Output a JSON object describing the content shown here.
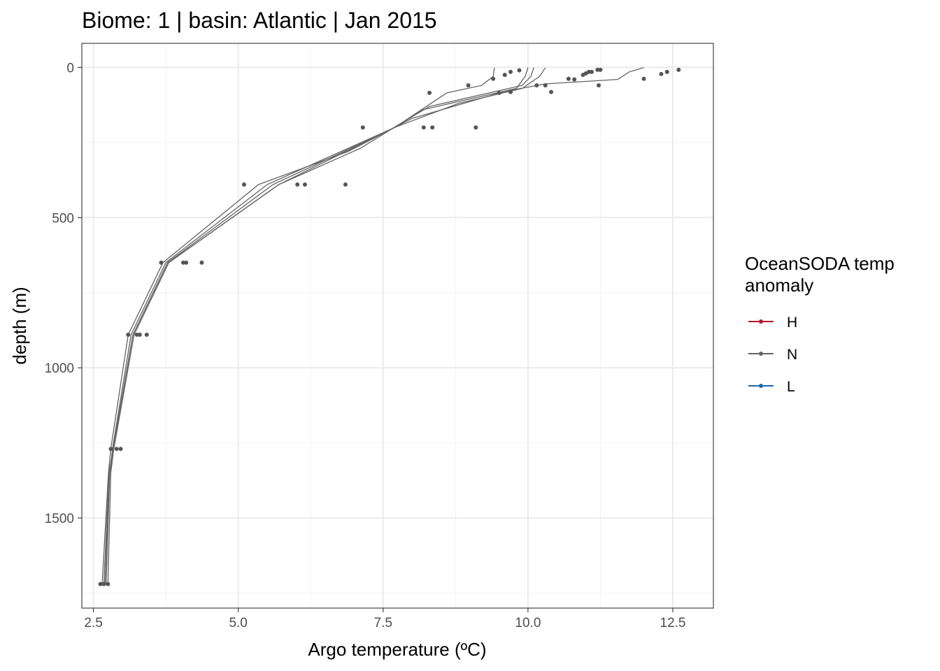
{
  "chart_data": {
    "type": "line",
    "title": "Biome: 1 | basin: Atlantic  | Jan 2015",
    "xlabel": "Argo temperature (ºC)",
    "ylabel": "depth (m)",
    "xlim": [
      2.3,
      13.2
    ],
    "ylim": [
      1800,
      -80
    ],
    "y_reversed": true,
    "x_ticks": [
      2.5,
      5.0,
      7.5,
      10.0,
      12.5
    ],
    "x_tick_labels": [
      "2.5",
      "5.0",
      "7.5",
      "10.0",
      "12.5"
    ],
    "y_ticks": [
      0,
      500,
      1000,
      1500
    ],
    "y_tick_labels": [
      "0",
      "500",
      "1000",
      "1500"
    ],
    "grid": true,
    "legend": {
      "position": "right",
      "title": "OceanSODA temp anomaly",
      "title_lines": [
        "OceanSODA temp",
        "anomaly"
      ],
      "entries": [
        {
          "label": "H",
          "color": "#b2182b"
        },
        {
          "label": "N",
          "color": "#636363"
        },
        {
          "label": "L",
          "color": "#2166ac"
        }
      ]
    },
    "series": [
      {
        "group": "N",
        "color": "#636363",
        "points": [
          [
            9.42,
            1
          ],
          [
            9.4,
            30
          ],
          [
            9.2,
            60
          ],
          [
            8.6,
            85
          ],
          [
            7.7,
            200
          ],
          [
            5.7,
            390
          ],
          [
            3.8,
            650
          ],
          [
            3.2,
            890
          ],
          [
            2.85,
            1270
          ],
          [
            2.8,
            1350
          ],
          [
            2.75,
            1720
          ]
        ]
      },
      {
        "group": "N",
        "color": "#636363",
        "points": [
          [
            10.0,
            1
          ],
          [
            9.95,
            30
          ],
          [
            9.8,
            70
          ],
          [
            8.2,
            140
          ],
          [
            7.1,
            270
          ],
          [
            5.7,
            390
          ],
          [
            3.8,
            650
          ],
          [
            3.2,
            890
          ],
          [
            2.85,
            1270
          ],
          [
            2.78,
            1350
          ],
          [
            2.72,
            1720
          ]
        ]
      },
      {
        "group": "N",
        "color": "#636363",
        "points": [
          [
            10.3,
            1
          ],
          [
            10.2,
            30
          ],
          [
            9.9,
            70
          ],
          [
            8.8,
            120
          ],
          [
            7.7,
            200
          ],
          [
            5.5,
            390
          ],
          [
            3.75,
            650
          ],
          [
            3.15,
            890
          ],
          [
            2.83,
            1270
          ],
          [
            2.78,
            1350
          ],
          [
            2.7,
            1720
          ]
        ]
      },
      {
        "group": "N",
        "color": "#636363",
        "points": [
          [
            12.0,
            1
          ],
          [
            11.75,
            15
          ],
          [
            11.55,
            40
          ],
          [
            10.3,
            55
          ],
          [
            9.6,
            80
          ],
          [
            8.0,
            170
          ],
          [
            6.9,
            280
          ],
          [
            5.35,
            390
          ],
          [
            3.7,
            650
          ],
          [
            3.1,
            890
          ],
          [
            2.8,
            1270
          ],
          [
            2.76,
            1350
          ],
          [
            2.65,
            1720
          ]
        ]
      },
      {
        "group": "N",
        "color": "#636363",
        "points": [
          [
            10.1,
            1
          ],
          [
            10.05,
            30
          ],
          [
            9.9,
            60
          ],
          [
            8.3,
            130
          ],
          [
            7.6,
            210
          ],
          [
            5.6,
            390
          ],
          [
            3.78,
            650
          ],
          [
            3.18,
            890
          ],
          [
            2.84,
            1270
          ],
          [
            2.77,
            1350
          ],
          [
            2.68,
            1720
          ]
        ]
      }
    ],
    "scatter": [
      [
        9.85,
        10
      ],
      [
        9.7,
        15
      ],
      [
        9.6,
        25
      ],
      [
        9.4,
        38
      ],
      [
        8.97,
        60
      ],
      [
        8.3,
        85
      ],
      [
        9.5,
        85
      ],
      [
        9.7,
        82
      ],
      [
        10.15,
        60
      ],
      [
        10.3,
        60
      ],
      [
        10.4,
        82
      ],
      [
        10.7,
        38
      ],
      [
        10.8,
        40
      ],
      [
        10.95,
        25
      ],
      [
        11.0,
        20
      ],
      [
        11.05,
        15
      ],
      [
        11.1,
        15
      ],
      [
        11.2,
        8
      ],
      [
        11.25,
        8
      ],
      [
        11.22,
        60
      ],
      [
        12.0,
        38
      ],
      [
        12.3,
        22
      ],
      [
        12.4,
        15
      ],
      [
        12.6,
        8
      ],
      [
        7.15,
        200
      ],
      [
        8.2,
        200
      ],
      [
        8.35,
        200
      ],
      [
        9.1,
        200
      ],
      [
        5.1,
        390
      ],
      [
        6.02,
        390
      ],
      [
        6.15,
        390
      ],
      [
        6.85,
        390
      ],
      [
        3.67,
        650
      ],
      [
        4.05,
        650
      ],
      [
        4.1,
        650
      ],
      [
        4.37,
        650
      ],
      [
        3.1,
        890
      ],
      [
        3.25,
        890
      ],
      [
        3.3,
        890
      ],
      [
        3.42,
        890
      ],
      [
        2.8,
        1270
      ],
      [
        2.9,
        1270
      ],
      [
        2.97,
        1270
      ],
      [
        2.62,
        1720
      ],
      [
        2.68,
        1720
      ],
      [
        2.75,
        1720
      ]
    ]
  }
}
